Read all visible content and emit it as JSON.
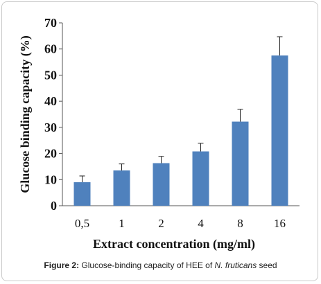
{
  "chart_data": {
    "type": "bar",
    "categories": [
      "0,5",
      "1",
      "2",
      "4",
      "8",
      "16"
    ],
    "values": [
      9.0,
      13.5,
      16.3,
      20.8,
      32.2,
      57.5
    ],
    "error_upper": [
      11.4,
      16.0,
      18.9,
      23.9,
      36.9,
      64.7
    ],
    "xlabel": "Extract concentration (mg/ml)",
    "ylabel": "Glucose binding capacity (%)",
    "ylim": [
      0,
      70
    ],
    "yticks": [
      0,
      10,
      20,
      30,
      40,
      50,
      60,
      70
    ],
    "bar_color": "#4f81bd",
    "grid": false,
    "legend": "none"
  },
  "caption": {
    "label": "Figure 2:",
    "text_before": " Glucose-binding capacity of HEE of ",
    "species": "N. fruticans",
    "text_after": " seed"
  }
}
